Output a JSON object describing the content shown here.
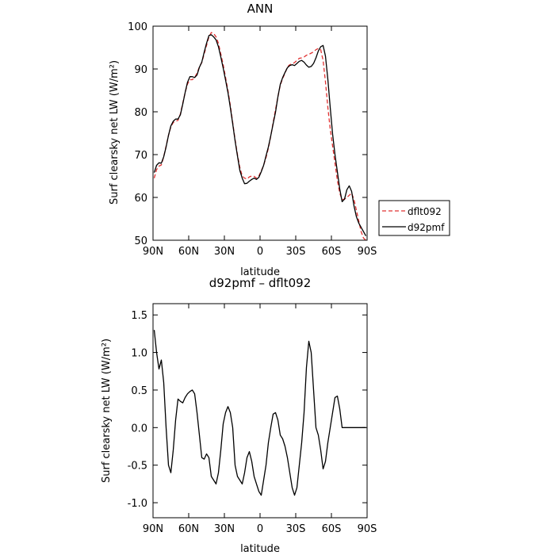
{
  "chart_data": [
    {
      "type": "line",
      "title": "ANN",
      "xlabel": "latitude",
      "ylabel": "Surf clearsky net LW (W/m²)",
      "xlim": [
        90,
        -90
      ],
      "ylim": [
        50,
        100
      ],
      "x_ticks": [
        90,
        60,
        30,
        0,
        -30,
        -60,
        -90
      ],
      "x_tick_labels": [
        "90N",
        "60N",
        "30N",
        "0",
        "30S",
        "60S",
        "90S"
      ],
      "y_ticks": [
        50,
        60,
        70,
        80,
        90,
        100
      ],
      "y_tick_labels": [
        "50",
        "60",
        "70",
        "80",
        "90",
        "100"
      ],
      "legend_position": "outside-right",
      "series": [
        {
          "name": "dflt092",
          "color": "#e03030",
          "dash": "dashed",
          "x": [
            89,
            87,
            85,
            83,
            81,
            79,
            77,
            75,
            73,
            71,
            69,
            67,
            65,
            63,
            61,
            59,
            57,
            55,
            53,
            51,
            49,
            47,
            45,
            43,
            41,
            39,
            37,
            35,
            33,
            31,
            29,
            27,
            25,
            23,
            21,
            19,
            17,
            15,
            13,
            11,
            9,
            7,
            5,
            3,
            1,
            -1,
            -3,
            -5,
            -7,
            -9,
            -11,
            -13,
            -15,
            -17,
            -19,
            -21,
            -23,
            -25,
            -27,
            -29,
            -31,
            -33,
            -35,
            -37,
            -39,
            -41,
            -43,
            -45,
            -47,
            -49,
            -51,
            -53,
            -55,
            -57,
            -59,
            -61,
            -63,
            -65,
            -67,
            -69,
            -71,
            -73,
            -75,
            -77,
            -79,
            -81,
            -83,
            -85,
            -87,
            -89
          ],
          "values": [
            64.5,
            66.5,
            67.3,
            67.6,
            69.5,
            72.0,
            74.5,
            76.5,
            77.5,
            77.8,
            78.0,
            79.5,
            82.0,
            84.5,
            86.5,
            87.5,
            87.5,
            88.0,
            89.0,
            90.5,
            91.5,
            93.5,
            95.5,
            97.5,
            98.5,
            98.3,
            97.5,
            96.0,
            93.5,
            91.0,
            88.0,
            85.0,
            81.5,
            77.5,
            73.5,
            70.0,
            67.0,
            65.0,
            64.5,
            64.3,
            64.8,
            65.0,
            64.9,
            64.5,
            65.0,
            66.2,
            67.5,
            69.3,
            71.5,
            74.3,
            77.5,
            80.5,
            83.5,
            86.2,
            87.8,
            89.0,
            90.5,
            91.0,
            91.2,
            91.5,
            92.0,
            92.5,
            92.6,
            92.8,
            93.2,
            93.4,
            93.7,
            94.0,
            94.5,
            94.8,
            94.5,
            92.0,
            87.0,
            81.0,
            76.0,
            72.0,
            68.0,
            64.0,
            61.0,
            59.5,
            59.6,
            60.0,
            60.5,
            61.0,
            59.5,
            57.0,
            54.5,
            52.0,
            50.5,
            50.0
          ]
        },
        {
          "name": "d92pmf",
          "color": "#000000",
          "dash": "solid",
          "x": [
            89,
            87,
            85,
            83,
            81,
            79,
            77,
            75,
            73,
            71,
            69,
            67,
            65,
            63,
            61,
            59,
            57,
            55,
            53,
            51,
            49,
            47,
            45,
            43,
            41,
            39,
            37,
            35,
            33,
            31,
            29,
            27,
            25,
            23,
            21,
            19,
            17,
            15,
            13,
            11,
            9,
            7,
            5,
            3,
            1,
            -1,
            -3,
            -5,
            -7,
            -9,
            -11,
            -13,
            -15,
            -17,
            -19,
            -21,
            -23,
            -25,
            -27,
            -29,
            -31,
            -33,
            -35,
            -37,
            -39,
            -41,
            -43,
            -45,
            -47,
            -49,
            -51,
            -53,
            -55,
            -57,
            -59,
            -61,
            -63,
            -65,
            -67,
            -69,
            -71,
            -73,
            -75,
            -77,
            -79,
            -81,
            -83,
            -85,
            -87,
            -89
          ],
          "values": [
            65.8,
            67.5,
            68.1,
            68.0,
            69.5,
            71.8,
            74.5,
            76.7,
            77.8,
            78.3,
            78.3,
            79.3,
            81.8,
            84.5,
            86.9,
            88.2,
            88.2,
            88.0,
            88.6,
            90.4,
            91.6,
            93.9,
            96.0,
            97.8,
            98.0,
            97.5,
            96.8,
            95.2,
            92.8,
            90.2,
            87.4,
            84.5,
            81.0,
            77.2,
            73.2,
            69.7,
            66.3,
            64.5,
            63.2,
            63.3,
            63.8,
            64.2,
            64.5,
            64.2,
            64.7,
            66.0,
            67.5,
            69.7,
            71.8,
            74.4,
            77.2,
            79.9,
            83.5,
            86.4,
            88.0,
            89.2,
            90.3,
            90.8,
            91.0,
            90.8,
            91.3,
            91.8,
            92.0,
            91.6,
            90.9,
            90.4,
            90.6,
            91.3,
            92.6,
            94.2,
            95.2,
            95.5,
            93.0,
            87.6,
            81.0,
            74.8,
            70.0,
            66.0,
            62.0,
            59.0,
            59.6,
            61.8,
            62.7,
            61.4,
            58.0,
            55.5,
            54.0,
            53.0,
            52.0,
            51.0
          ]
        }
      ]
    },
    {
      "type": "line",
      "title": "d92pmf – dflt092",
      "xlabel": "latitude",
      "ylabel": "Surf clearsky net LW (W/m²)",
      "xlim": [
        90,
        -90
      ],
      "ylim": [
        -1.2,
        1.65
      ],
      "x_ticks": [
        90,
        60,
        30,
        0,
        -30,
        -60,
        -90
      ],
      "x_tick_labels": [
        "90N",
        "60N",
        "30N",
        "0",
        "30S",
        "60S",
        "90S"
      ],
      "y_ticks": [
        1.5,
        1.0,
        0.5,
        0.0,
        -0.5,
        -1.0
      ],
      "y_tick_labels": [
        "1.5",
        "1.0",
        "0.5",
        "0.0",
        "-0.5",
        "-1.0"
      ],
      "series": [
        {
          "name": "",
          "color": "#000000",
          "dash": "solid",
          "x": [
            89,
            87,
            85,
            83,
            81,
            79,
            77,
            75,
            73,
            71,
            69,
            67,
            65,
            63,
            61,
            59,
            57,
            55,
            53,
            51,
            49,
            47,
            45,
            43,
            41,
            39,
            37,
            35,
            33,
            31,
            29,
            27,
            25,
            23,
            21,
            19,
            17,
            15,
            13,
            11,
            9,
            7,
            5,
            3,
            1,
            -1,
            -3,
            -5,
            -7,
            -9,
            -11,
            -13,
            -15,
            -17,
            -19,
            -21,
            -23,
            -25,
            -27,
            -29,
            -31,
            -33,
            -35,
            -37,
            -39,
            -41,
            -43,
            -45,
            -47,
            -49,
            -51,
            -53,
            -55,
            -57,
            -59,
            -61,
            -63,
            -65,
            -67,
            -69,
            -71,
            -73,
            -75,
            -77,
            -79,
            -81,
            -83,
            -85,
            -87,
            -89
          ],
          "values": [
            1.3,
            1.0,
            0.78,
            0.9,
            0.6,
            0.0,
            -0.5,
            -0.6,
            -0.3,
            0.1,
            0.38,
            0.35,
            0.33,
            0.4,
            0.45,
            0.48,
            0.5,
            0.45,
            0.2,
            -0.1,
            -0.4,
            -0.42,
            -0.35,
            -0.4,
            -0.65,
            -0.7,
            -0.75,
            -0.6,
            -0.3,
            0.05,
            0.2,
            0.28,
            0.2,
            0.0,
            -0.5,
            -0.65,
            -0.7,
            -0.75,
            -0.6,
            -0.4,
            -0.32,
            -0.45,
            -0.65,
            -0.75,
            -0.85,
            -0.9,
            -0.7,
            -0.5,
            -0.2,
            0.0,
            0.18,
            0.2,
            0.1,
            -0.1,
            -0.15,
            -0.25,
            -0.4,
            -0.6,
            -0.8,
            -0.9,
            -0.8,
            -0.5,
            -0.2,
            0.2,
            0.8,
            1.15,
            1.0,
            0.5,
            0.0,
            -0.1,
            -0.3,
            -0.55,
            -0.45,
            -0.2,
            0.0,
            0.2,
            0.4,
            0.42,
            0.25,
            0.0,
            0.0,
            0.0,
            0.0,
            0.0,
            0.0,
            0.0,
            0.0,
            0.0,
            0.0,
            0.0
          ]
        }
      ]
    }
  ]
}
